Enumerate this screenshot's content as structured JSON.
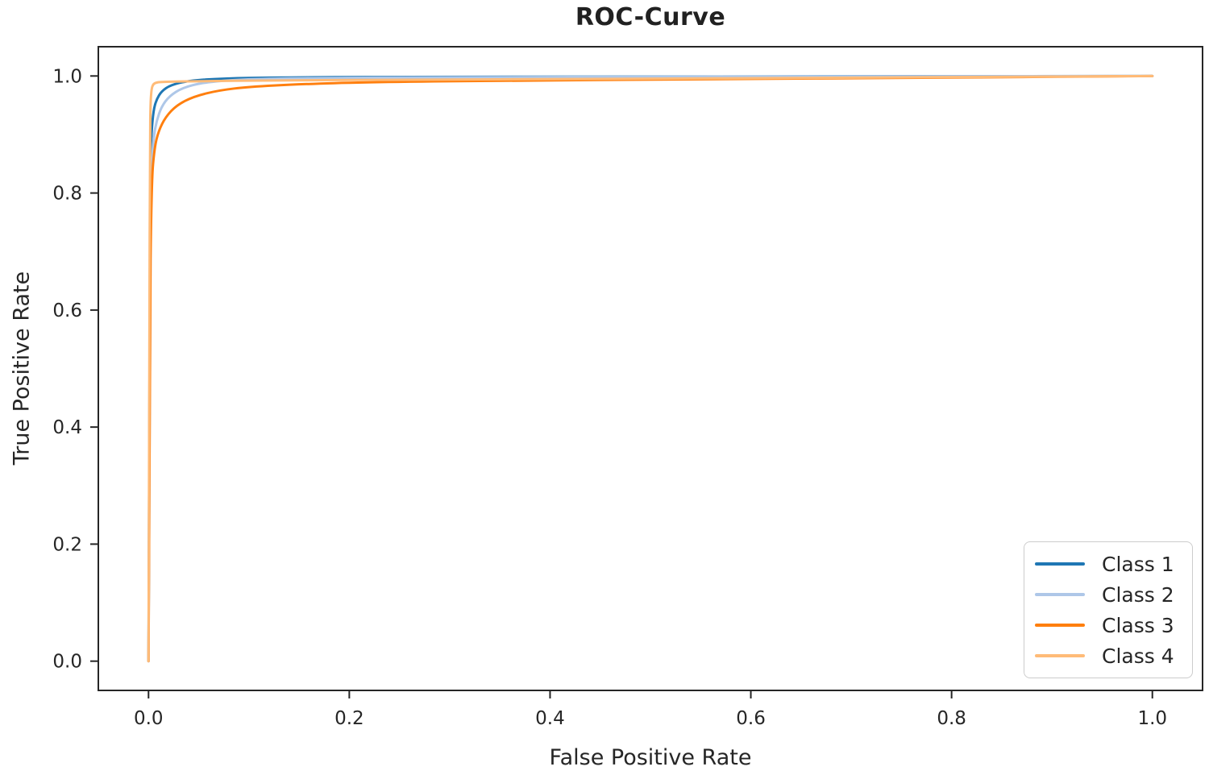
{
  "chart_data": {
    "type": "line",
    "title": "ROC-Curve",
    "xlabel": "False Positive Rate",
    "ylabel": "True Positive Rate",
    "xlim": [
      -0.05,
      1.05
    ],
    "ylim": [
      -0.05,
      1.05
    ],
    "xticks": [
      0.0,
      0.2,
      0.4,
      0.6,
      0.8,
      1.0
    ],
    "yticks": [
      0.0,
      0.2,
      0.4,
      0.6,
      0.8,
      1.0
    ],
    "grid": false,
    "legend_position": "lower right",
    "axis_color": "#262626",
    "series": [
      {
        "name": "Class 1",
        "color": "#1f77b4",
        "points": [
          [
            0,
            0
          ],
          [
            0.001,
            0.6
          ],
          [
            0.002,
            0.86
          ],
          [
            0.003,
            0.905
          ],
          [
            0.005,
            0.942
          ],
          [
            0.008,
            0.96
          ],
          [
            0.013,
            0.974
          ],
          [
            0.022,
            0.9845
          ],
          [
            0.04,
            0.992
          ],
          [
            0.07,
            0.9955
          ],
          [
            0.12,
            0.9975
          ],
          [
            0.25,
            0.9985
          ],
          [
            0.5,
            0.999
          ],
          [
            0.75,
            0.9995
          ],
          [
            1.0,
            1.0
          ]
        ]
      },
      {
        "name": "Class 2",
        "color": "#aec7e8",
        "points": [
          [
            0,
            0
          ],
          [
            0.001,
            0.58
          ],
          [
            0.003,
            0.84
          ],
          [
            0.005,
            0.895
          ],
          [
            0.008,
            0.923
          ],
          [
            0.013,
            0.948
          ],
          [
            0.021,
            0.966
          ],
          [
            0.034,
            0.98
          ],
          [
            0.055,
            0.989
          ],
          [
            0.09,
            0.994
          ],
          [
            0.15,
            0.9965
          ],
          [
            0.3,
            0.998
          ],
          [
            0.6,
            0.999
          ],
          [
            1.0,
            1.0
          ]
        ]
      },
      {
        "name": "Class 3",
        "color": "#ff7f0e",
        "points": [
          [
            0,
            0
          ],
          [
            0.001,
            0.55
          ],
          [
            0.003,
            0.82
          ],
          [
            0.006,
            0.878
          ],
          [
            0.01,
            0.906
          ],
          [
            0.017,
            0.93
          ],
          [
            0.028,
            0.95
          ],
          [
            0.045,
            0.965
          ],
          [
            0.07,
            0.9755
          ],
          [
            0.1,
            0.9815
          ],
          [
            0.15,
            0.986
          ],
          [
            0.22,
            0.9895
          ],
          [
            0.35,
            0.992
          ],
          [
            0.55,
            0.9945
          ],
          [
            0.78,
            0.997
          ],
          [
            1.0,
            1.0
          ]
        ]
      },
      {
        "name": "Class 4",
        "color": "#ffbb78",
        "points": [
          [
            0,
            0
          ],
          [
            0.0008,
            0.55
          ],
          [
            0.0015,
            0.9
          ],
          [
            0.002,
            0.955
          ],
          [
            0.003,
            0.978
          ],
          [
            0.0045,
            0.9855
          ],
          [
            0.007,
            0.9885
          ],
          [
            0.012,
            0.99
          ],
          [
            0.05,
            0.9912
          ],
          [
            0.12,
            0.9924
          ],
          [
            0.25,
            0.9936
          ],
          [
            0.45,
            0.995
          ],
          [
            0.7,
            0.997
          ],
          [
            1.0,
            1.0
          ]
        ]
      }
    ]
  }
}
